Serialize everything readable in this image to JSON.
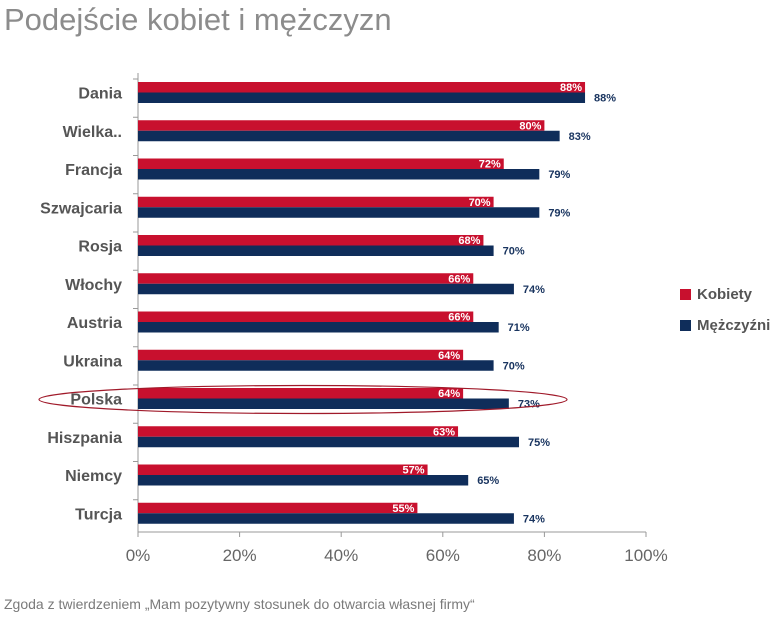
{
  "title": "Podejście kobiet i mężczyzn",
  "footnote": "Zgoda z twierdzeniem „Mam pozytywny stosunek do otwarcia własnej firmy“",
  "colors": {
    "kobiety": "#c8102e",
    "mezczyzni": "#0f2d5a",
    "highlight_ellipse": "#a01a2a",
    "axis": "#999999"
  },
  "legend": {
    "kobiety": "Kobiety",
    "mezczyzni": "Mężczyźni"
  },
  "highlighted_category": "Polska",
  "chart_data": {
    "type": "bar",
    "orientation": "horizontal",
    "title": "Podejście kobiet i mężczyzn",
    "categories": [
      "Dania",
      "Wielka..",
      "Francja",
      "Szwajcaria",
      "Rosja",
      "Włochy",
      "Austria",
      "Ukraina",
      "Polska",
      "Hiszpania",
      "Niemcy",
      "Turcja"
    ],
    "series": [
      {
        "name": "Kobiety",
        "values": [
          88,
          80,
          72,
          70,
          68,
          66,
          66,
          64,
          64,
          63,
          57,
          55
        ]
      },
      {
        "name": "Mężczyźni",
        "values": [
          88,
          83,
          79,
          79,
          70,
          74,
          71,
          70,
          73,
          75,
          65,
          74
        ]
      }
    ],
    "xlim": [
      0,
      100
    ],
    "xticks": [
      0,
      20,
      40,
      60,
      80,
      100
    ],
    "tick_suffix": "%",
    "value_suffix": "%",
    "legend_position": "right",
    "grid": false
  }
}
